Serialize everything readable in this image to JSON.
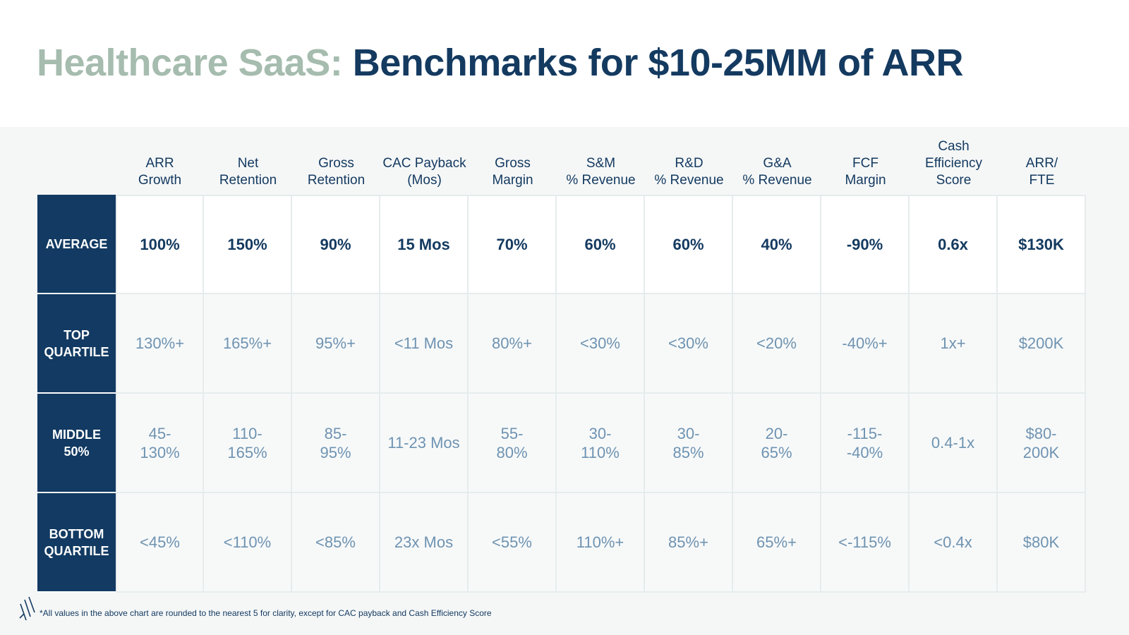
{
  "title": {
    "lead": "Healthcare SaaS:",
    "rest": "Benchmarks for $10-25MM of ARR"
  },
  "columns": [
    "ARR\nGrowth",
    "Net\nRetention",
    "Gross\nRetention",
    "CAC Payback\n(Mos)",
    "Gross\nMargin",
    "S&M\n% Revenue",
    "R&D\n% Revenue",
    "G&A\n% Revenue",
    "FCF\nMargin",
    "Cash\nEfficiency\nScore",
    "ARR/\nFTE"
  ],
  "rows": [
    {
      "label": "AVERAGE",
      "values": [
        "100%",
        "150%",
        "90%",
        "15 Mos",
        "70%",
        "60%",
        "60%",
        "40%",
        "-90%",
        "0.6x",
        "$130K"
      ]
    },
    {
      "label": "TOP\nQUARTILE",
      "values": [
        "130%+",
        "165%+",
        "95%+",
        "<11 Mos",
        "80%+",
        "<30%",
        "<30%",
        "<20%",
        "-40%+",
        "1x+",
        "$200K"
      ]
    },
    {
      "label": "MIDDLE\n50%",
      "values": [
        "45-\n130%",
        "110-\n165%",
        "85-\n95%",
        "11-23 Mos",
        "55-\n80%",
        "30-\n110%",
        "30-\n85%",
        "20-\n65%",
        "-115-\n-40%",
        "0.4-1x",
        "$80-\n200K"
      ]
    },
    {
      "label": "BOTTOM\nQUARTILE",
      "values": [
        "<45%",
        "<110%",
        "<85%",
        "23x Mos",
        "<55%",
        "110%+",
        "85%+",
        "65%+",
        "<-115%",
        "<0.4x",
        "$80K"
      ]
    }
  ],
  "footnote": "*All values in the above chart are rounded to the nearest 5 for clarity, except for CAC payback and Cash Efficiency Score",
  "colors": {
    "title_lead": "#a5bcae",
    "title_main": "#143a60",
    "row_header_bg": "#123a62",
    "average_text": "#143a60",
    "other_text": "#6f93b1"
  },
  "icons": {
    "brand": "slash-logo-icon"
  }
}
